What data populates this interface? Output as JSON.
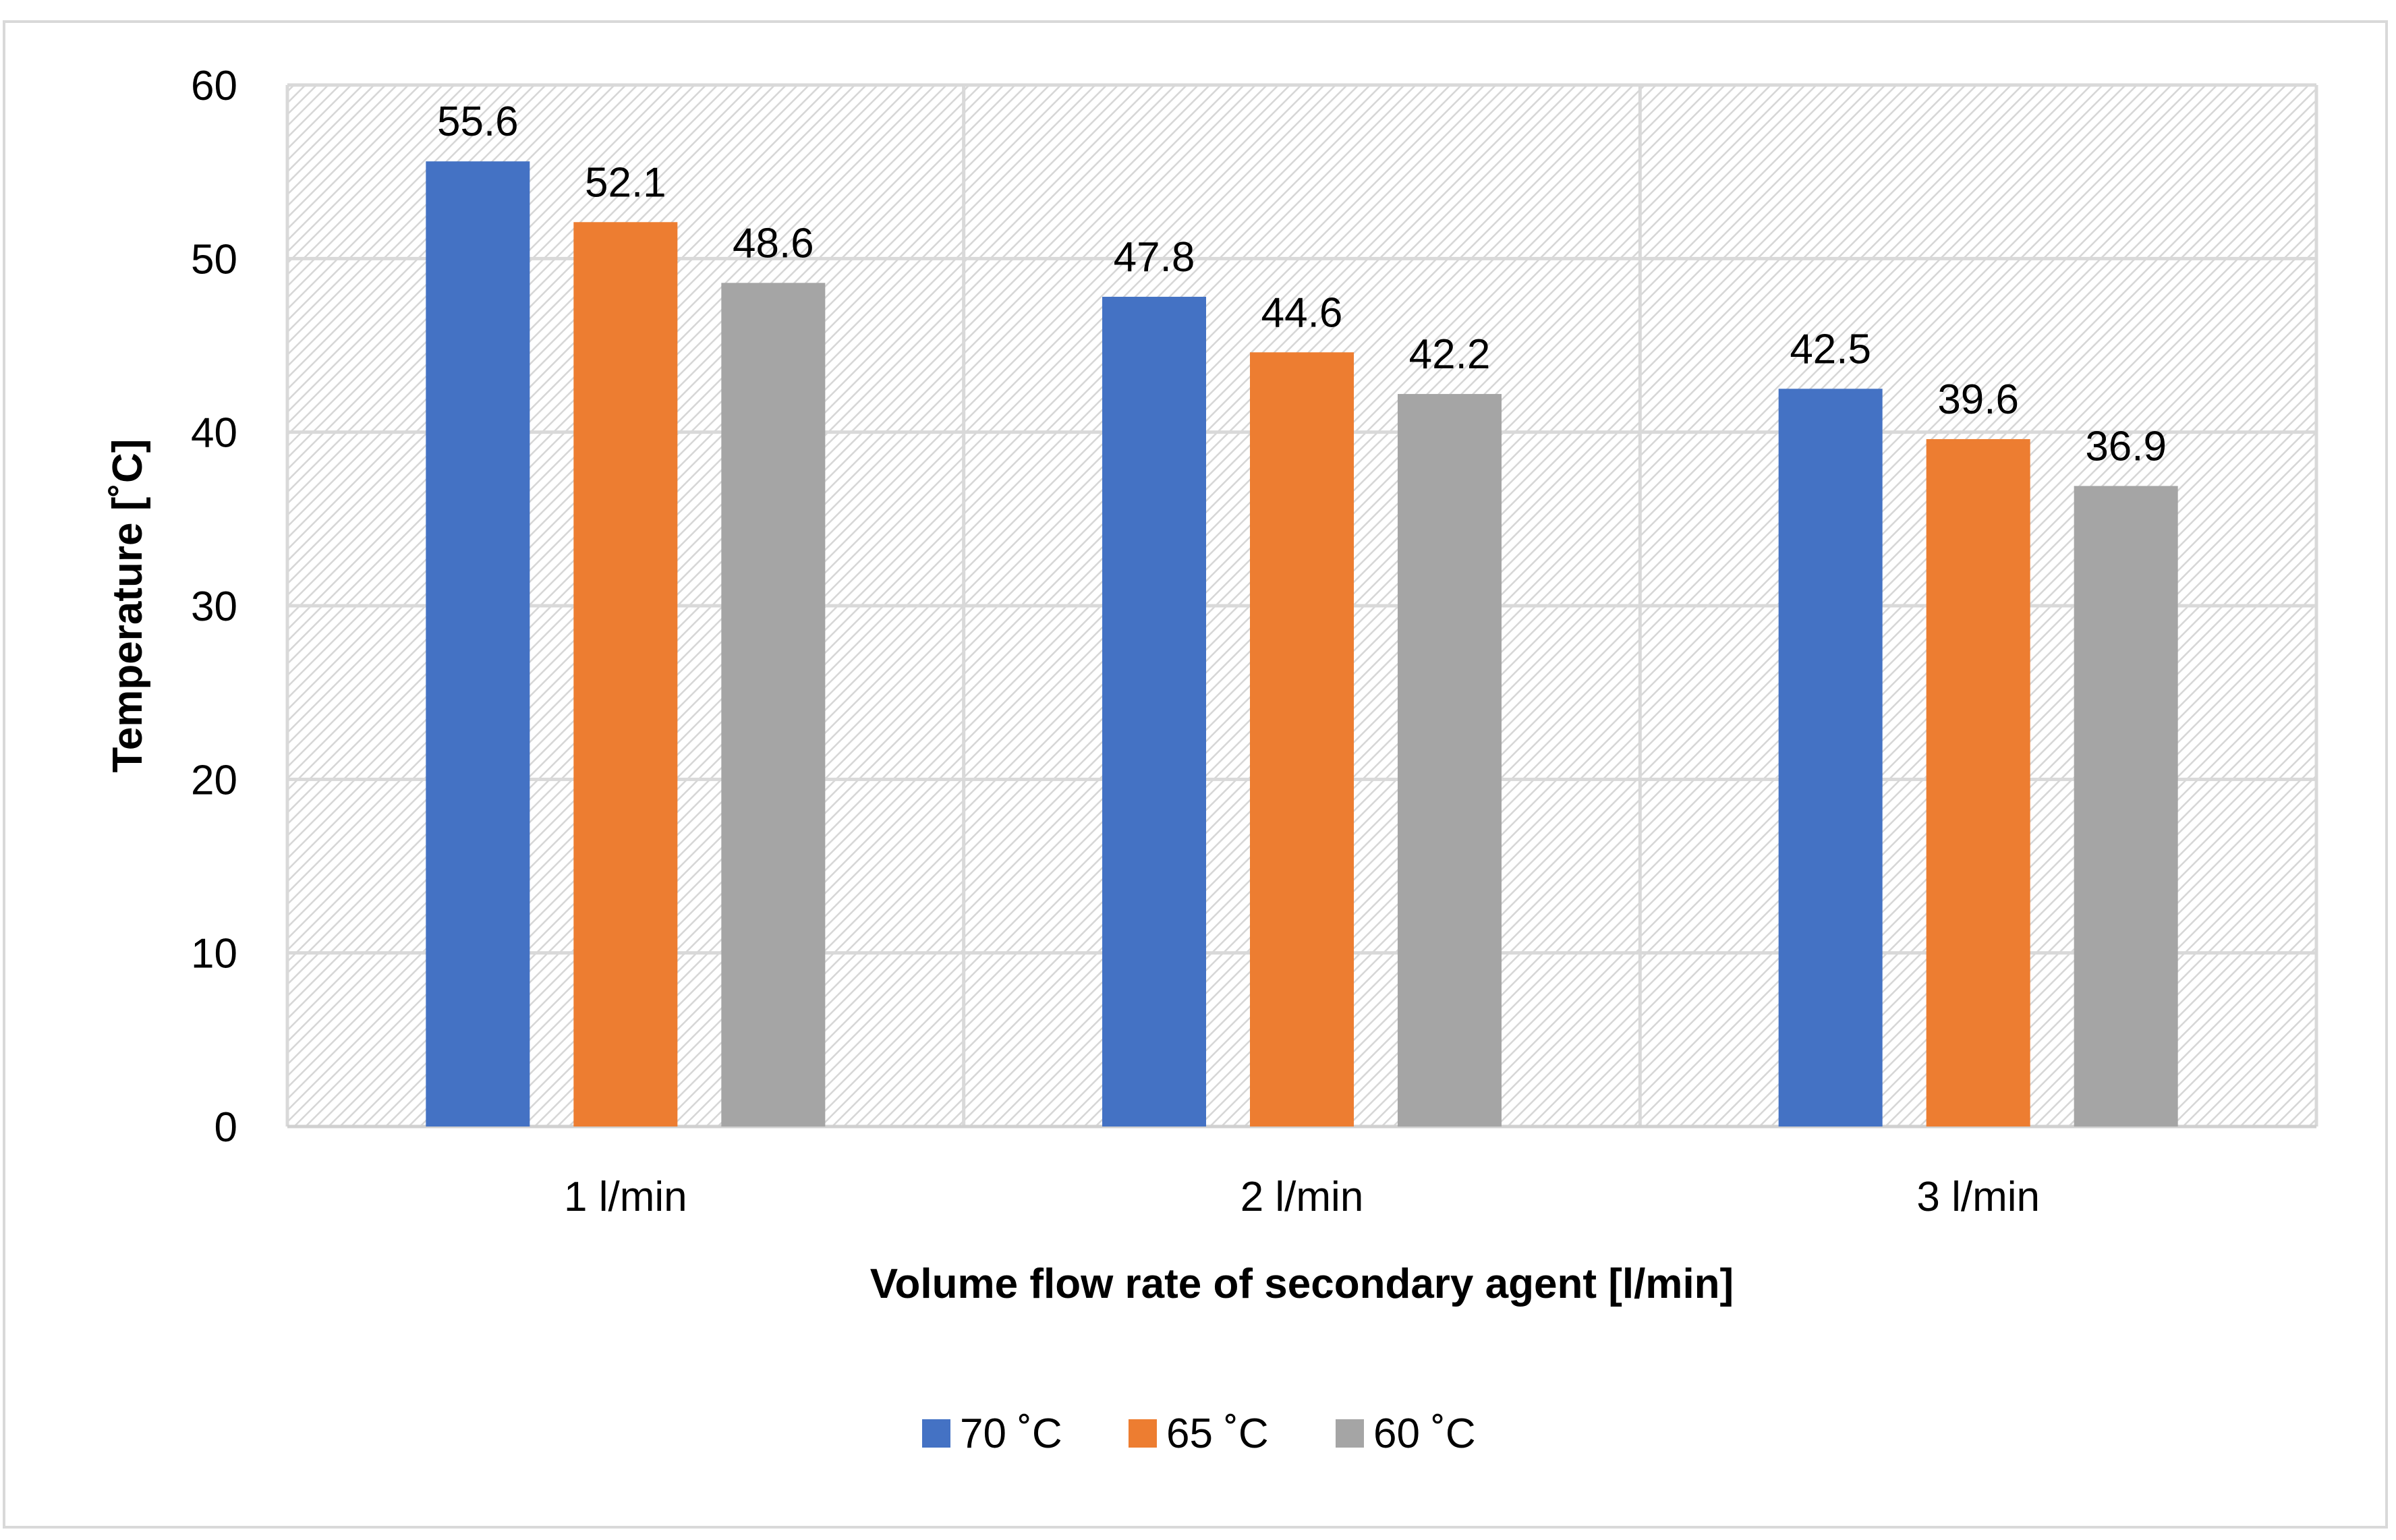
{
  "chart_data": {
    "type": "bar",
    "title": "",
    "xlabel": "Volume flow rate of secondary agent [l/min]",
    "ylabel": "Temperature [˚C]",
    "categories": [
      "1 l/min",
      "2 l/min",
      "3 l/min"
    ],
    "series": [
      {
        "name": "70 ˚C",
        "color": "#4472c4",
        "values": [
          55.6,
          47.8,
          42.5
        ]
      },
      {
        "name": "65 ˚C",
        "color": "#ed7d31",
        "values": [
          52.1,
          44.6,
          39.6
        ]
      },
      {
        "name": "60 ˚C",
        "color": "#a5a5a5",
        "values": [
          48.6,
          42.2,
          36.9
        ]
      }
    ],
    "ylim": [
      0,
      60
    ],
    "yticks": [
      0,
      10,
      20,
      30,
      40,
      50,
      60
    ],
    "grid": true,
    "legend": "bottom"
  }
}
